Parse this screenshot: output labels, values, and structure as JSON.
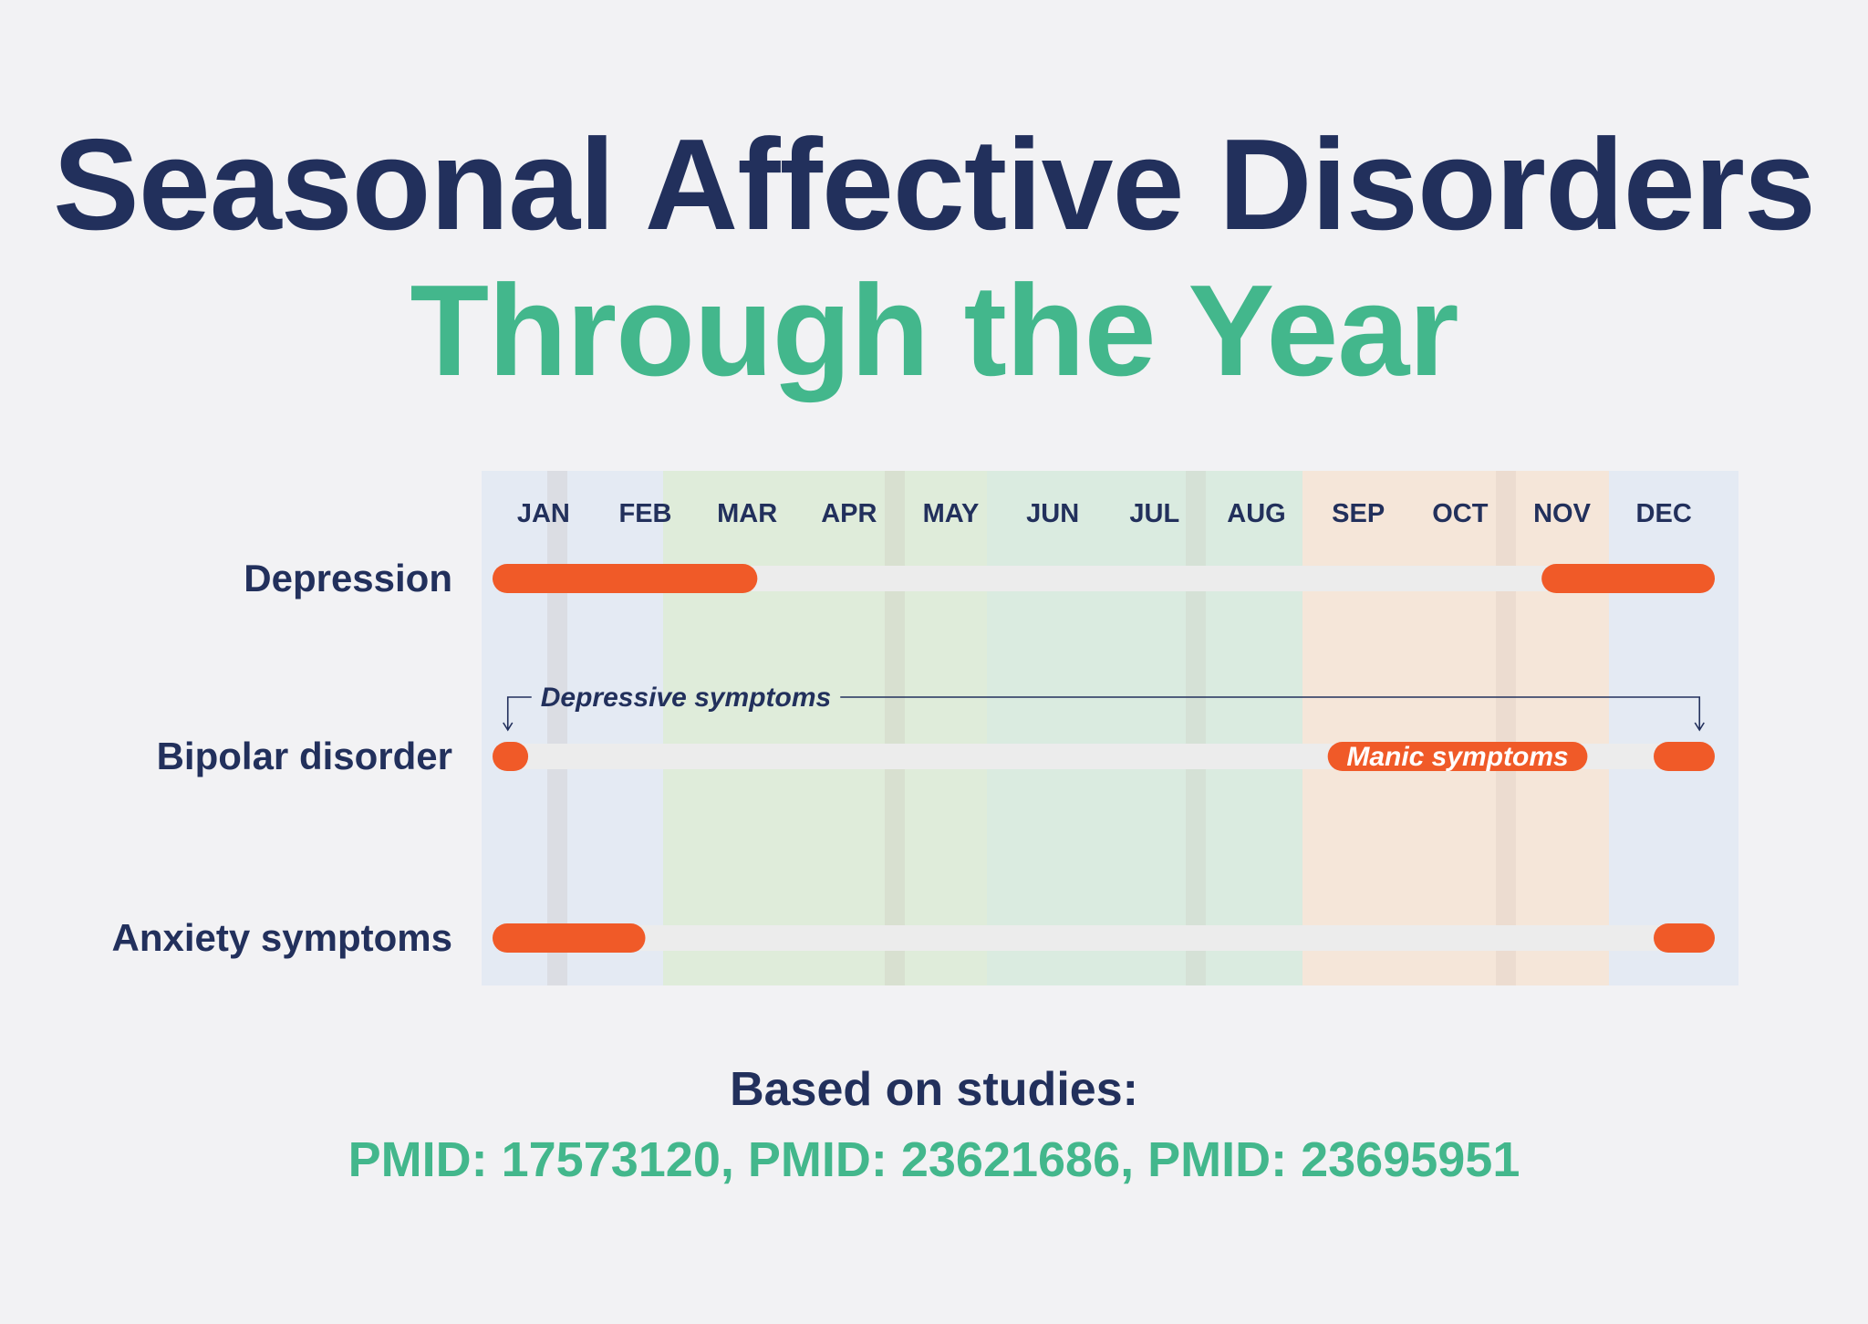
{
  "title": {
    "line1": "Seasonal Affective Disorders",
    "line2": "Through the Year"
  },
  "footer": {
    "heading": "Based on studies:",
    "sources": "PMID: 17573120, PMID: 23621686, PMID: 23695951"
  },
  "colors": {
    "navy": "#22305c",
    "green": "#43b78c",
    "bar": "#f05a28",
    "track": "#ececec",
    "winter": "#d8e3f2",
    "spring": "#cfe8c4",
    "summer": "#c7e6cf",
    "autumn": "#f7dcc3"
  },
  "chart_data": {
    "type": "timeline",
    "categories": [
      "JAN",
      "FEB",
      "MAR",
      "APR",
      "MAY",
      "JUN",
      "JUL",
      "AUG",
      "SEP",
      "OCT",
      "NOV",
      "DEC"
    ],
    "rows": [
      {
        "label": "Depression",
        "segments": [
          {
            "start": 0,
            "end": 2.6
          },
          {
            "start": 10.3,
            "end": 12
          }
        ]
      },
      {
        "label": "Bipolar disorder",
        "segments": [
          {
            "start": 0,
            "end": 0.35
          },
          {
            "start": 8.2,
            "end": 10.75,
            "label": "Manic symptoms"
          },
          {
            "start": 11.4,
            "end": 12
          }
        ]
      },
      {
        "label": "Anxiety symptoms",
        "segments": [
          {
            "start": 0,
            "end": 1.5
          },
          {
            "start": 11.4,
            "end": 12
          }
        ]
      }
    ],
    "annotation": {
      "label": "Depressive symptoms",
      "row": "Bipolar disorder",
      "from": 0.15,
      "to": 11.85
    }
  }
}
